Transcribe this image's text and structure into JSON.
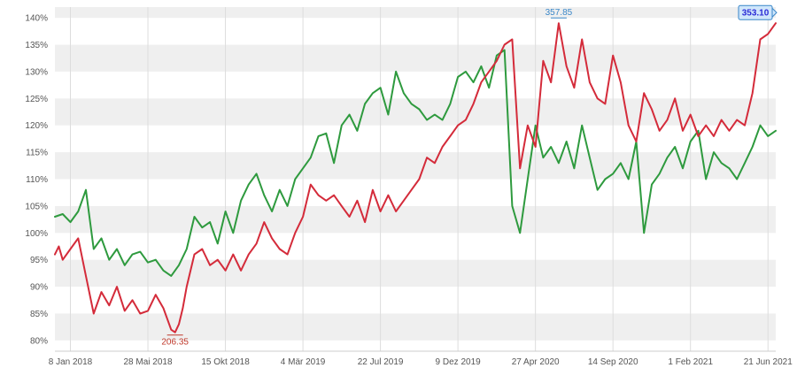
{
  "chart_data": {
    "type": "line",
    "title": "",
    "xlabel": "",
    "ylabel": "",
    "ylim": [
      78,
      142
    ],
    "y_ticks": [
      "80%",
      "85%",
      "90%",
      "95%",
      "100%",
      "105%",
      "110%",
      "115%",
      "120%",
      "125%",
      "130%",
      "135%",
      "140%"
    ],
    "x_tick_labels": [
      "8 Jan 2018",
      "28 Mai 2018",
      "15 Okt 2018",
      "4 Mär 2019",
      "22 Jul 2019",
      "9 Dez 2019",
      "27 Apr 2020",
      "14 Sep 2020",
      "1 Feb 2021",
      "21 Jun 2021"
    ],
    "x_range_weeks": [
      -4,
      182
    ],
    "grid": "horizontal alternating bands",
    "legend": "none",
    "series": [
      {
        "color": "#d42b3a",
        "x": [
          -4,
          -3,
          -2,
          0,
          2,
          4,
          6,
          8,
          10,
          12,
          14,
          16,
          18,
          20,
          22,
          24,
          26,
          27,
          28,
          29,
          30,
          32,
          34,
          36,
          38,
          40,
          42,
          44,
          46,
          48,
          50,
          52,
          54,
          56,
          58,
          60,
          62,
          64,
          66,
          68,
          70,
          72,
          74,
          76,
          78,
          80,
          82,
          84,
          86,
          88,
          90,
          92,
          94,
          96,
          98,
          100,
          102,
          104,
          106,
          108,
          110,
          112,
          114,
          116,
          118,
          120,
          122,
          124,
          126,
          128,
          130,
          132,
          134,
          136,
          138,
          140,
          142,
          144,
          146,
          148,
          150,
          152,
          154,
          156,
          158,
          160,
          162,
          164,
          166,
          168,
          170,
          172,
          174,
          176,
          178,
          180,
          182
        ],
        "values": [
          96.0,
          97.5,
          95.0,
          97.0,
          99.0,
          92.0,
          85.0,
          89.0,
          86.5,
          90.0,
          85.5,
          87.5,
          85.0,
          85.5,
          88.5,
          86.0,
          82.0,
          81.5,
          83.0,
          86.0,
          90.0,
          96.0,
          97.0,
          94.0,
          95.0,
          93.0,
          96.0,
          93.0,
          96.0,
          98.0,
          102.0,
          99.0,
          97.0,
          96.0,
          100.0,
          103.0,
          109.0,
          107.0,
          106.0,
          107.0,
          105.0,
          103.0,
          106.0,
          102.0,
          108.0,
          104.0,
          107.0,
          104.0,
          106.0,
          108.0,
          110.0,
          114.0,
          113.0,
          116.0,
          118.0,
          120.0,
          121.0,
          124.0,
          128.0,
          130.0,
          132.0,
          135.0,
          136.0,
          112.0,
          120.0,
          116.0,
          132.0,
          128.0,
          139.0,
          131.0,
          127.0,
          136.0,
          128.0,
          125.0,
          124.0,
          133.0,
          128.0,
          120.0,
          117.0,
          126.0,
          123.0,
          119.0,
          121.0,
          125.0,
          119.0,
          122.0,
          118.0,
          120.0,
          118.0,
          121.0,
          119.0,
          121.0,
          120.0,
          126.0,
          136.0,
          137.0,
          139.0
        ]
      },
      {
        "color": "#2e9a3e",
        "x": [
          -4,
          -2,
          0,
          2,
          4,
          6,
          8,
          10,
          12,
          14,
          16,
          18,
          20,
          22,
          24,
          26,
          28,
          30,
          32,
          34,
          36,
          38,
          40,
          42,
          44,
          46,
          48,
          50,
          52,
          54,
          56,
          58,
          60,
          62,
          64,
          66,
          68,
          70,
          72,
          74,
          76,
          78,
          80,
          82,
          84,
          86,
          88,
          90,
          92,
          94,
          96,
          98,
          100,
          102,
          104,
          106,
          108,
          110,
          112,
          114,
          116,
          118,
          120,
          122,
          124,
          126,
          128,
          130,
          132,
          134,
          136,
          138,
          140,
          142,
          144,
          146,
          148,
          150,
          152,
          154,
          156,
          158,
          160,
          162,
          164,
          166,
          168,
          170,
          172,
          174,
          176,
          178,
          180,
          182
        ],
        "values": [
          103.0,
          103.5,
          102.0,
          104.0,
          108.0,
          97.0,
          99.0,
          95.0,
          97.0,
          94.0,
          96.0,
          96.5,
          94.5,
          95.0,
          93.0,
          92.0,
          94.0,
          97.0,
          103.0,
          101.0,
          102.0,
          98.0,
          104.0,
          100.0,
          106.0,
          109.0,
          111.0,
          107.0,
          104.0,
          108.0,
          105.0,
          110.0,
          112.0,
          114.0,
          118.0,
          118.5,
          113.0,
          120.0,
          122.0,
          119.0,
          124.0,
          126.0,
          127.0,
          122.0,
          130.0,
          126.0,
          124.0,
          123.0,
          121.0,
          122.0,
          121.0,
          124.0,
          129.0,
          130.0,
          128.0,
          131.0,
          127.0,
          133.0,
          134.0,
          105.0,
          100.0,
          110.0,
          120.0,
          114.0,
          116.0,
          113.0,
          117.0,
          112.0,
          120.0,
          114.0,
          108.0,
          110.0,
          111.0,
          113.0,
          110.0,
          117.0,
          100.0,
          109.0,
          111.0,
          114.0,
          116.0,
          112.0,
          117.0,
          119.0,
          110.0,
          115.0,
          113.0,
          112.0,
          110.0,
          113.0,
          116.0,
          120.0,
          118.0,
          119.0
        ]
      }
    ],
    "annotations": {
      "low": "206.35",
      "high": "357.85",
      "last": "353.10"
    }
  }
}
